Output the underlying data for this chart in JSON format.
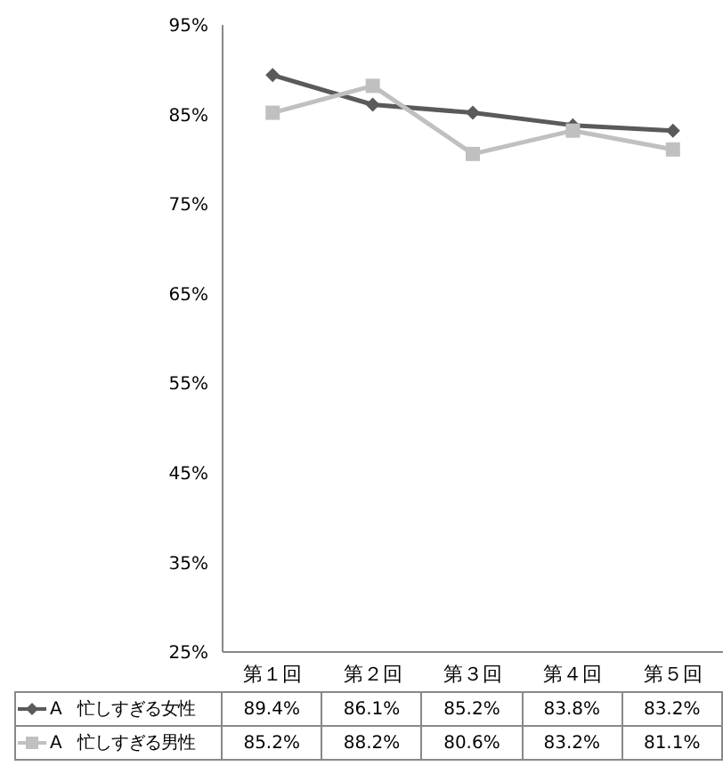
{
  "chart_data": {
    "type": "line",
    "categories": [
      "第１回",
      "第２回",
      "第３回",
      "第４回",
      "第５回"
    ],
    "series": [
      {
        "name": "A　忙しすぎる女性",
        "color": "#5a5a5a",
        "marker": "diamond",
        "values": [
          89.4,
          86.1,
          85.2,
          83.8,
          83.2
        ],
        "value_labels": [
          "89.4%",
          "86.1%",
          "85.2%",
          "83.8%",
          "83.2%"
        ]
      },
      {
        "name": "A　忙しすぎる男性",
        "color": "#c0c0c0",
        "marker": "square",
        "values": [
          85.2,
          88.2,
          80.6,
          83.2,
          81.1
        ],
        "value_labels": [
          "85.2%",
          "88.2%",
          "80.6%",
          "83.2%",
          "81.1%"
        ]
      }
    ],
    "ylim": [
      25,
      95
    ],
    "yticks": [
      {
        "value": 25,
        "label": "25%"
      },
      {
        "value": 35,
        "label": "35%"
      },
      {
        "value": 45,
        "label": "45%"
      },
      {
        "value": 55,
        "label": "55%"
      },
      {
        "value": 65,
        "label": "65%"
      },
      {
        "value": 75,
        "label": "75%"
      },
      {
        "value": 85,
        "label": "85%"
      },
      {
        "value": 95,
        "label": "95%"
      }
    ],
    "grid": false,
    "legend": "bottom"
  }
}
